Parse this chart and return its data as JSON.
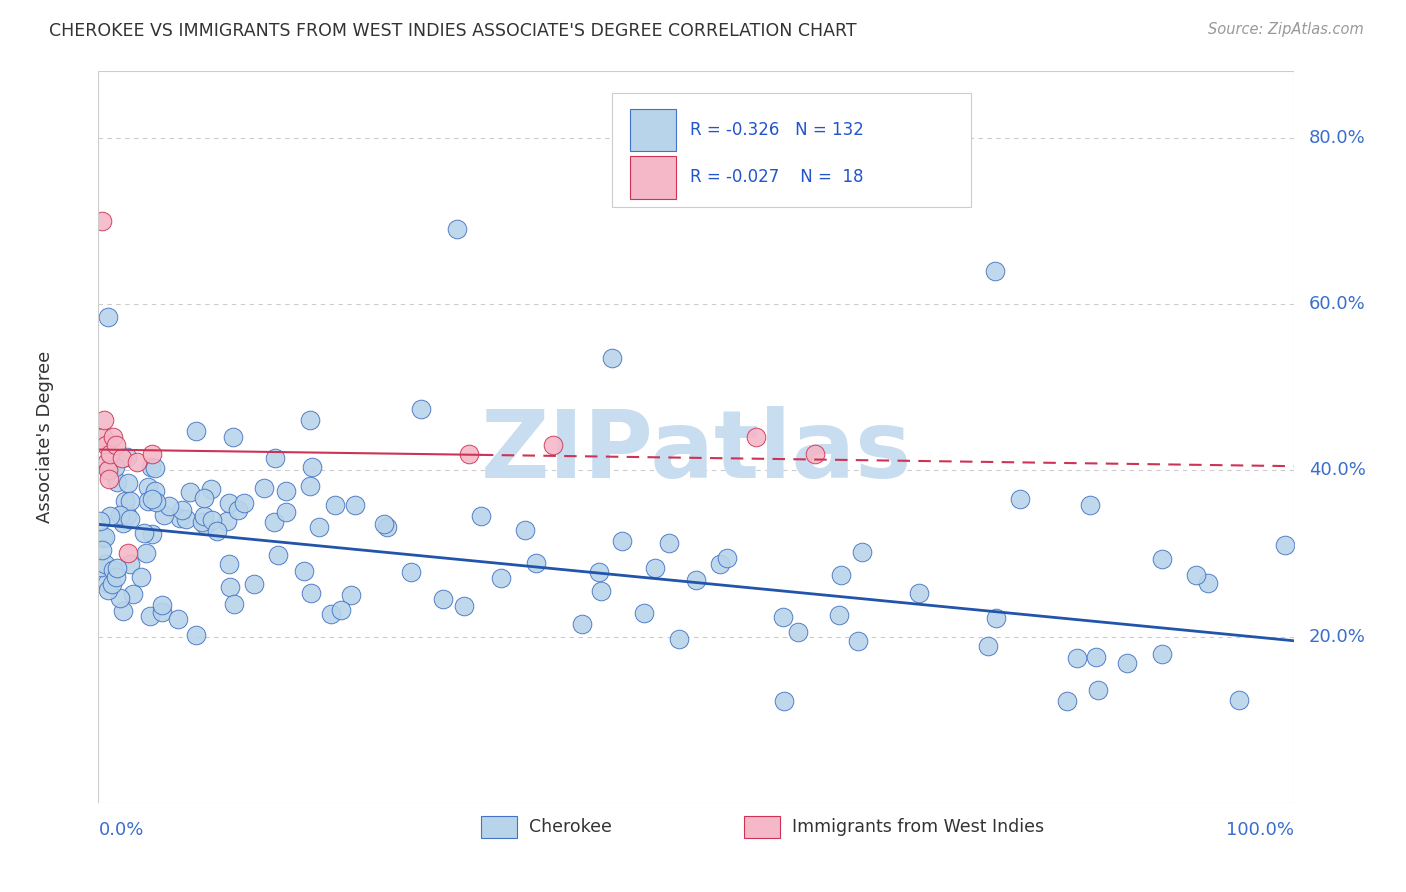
{
  "title": "CHEROKEE VS IMMIGRANTS FROM WEST INDIES ASSOCIATE'S DEGREE CORRELATION CHART",
  "source": "Source: ZipAtlas.com",
  "ylabel": "Associate's Degree",
  "watermark": "ZIPatlas",
  "cherokee": {
    "label": "Cherokee",
    "R": -0.326,
    "N": 132,
    "fill_color": "#b8d4ea",
    "edge_color": "#4472c4",
    "line_color": "#2255aa"
  },
  "west_indies": {
    "label": "Immigrants from West Indies",
    "R": -0.027,
    "N": 18,
    "fill_color": "#f4b8c8",
    "edge_color": "#cc3355",
    "line_color": "#cc3355"
  },
  "cherokee_line_y0": 0.335,
  "cherokee_line_y1": 0.195,
  "west_indies_line_y0": 0.425,
  "west_indies_line_y1": 0.405,
  "xlim": [
    0.0,
    1.0
  ],
  "ylim": [
    0.0,
    0.88
  ],
  "yticks": [
    0.2,
    0.4,
    0.6,
    0.8
  ],
  "ytick_labels": [
    "20.0%",
    "40.0%",
    "60.0%",
    "80.0%"
  ],
  "grid_color": "#cccccc",
  "background_color": "#ffffff",
  "legend_text_color": "#2255cc",
  "title_color": "#333333",
  "axis_label_color": "#3a6ecc",
  "watermark_color": "#c8ddf0"
}
